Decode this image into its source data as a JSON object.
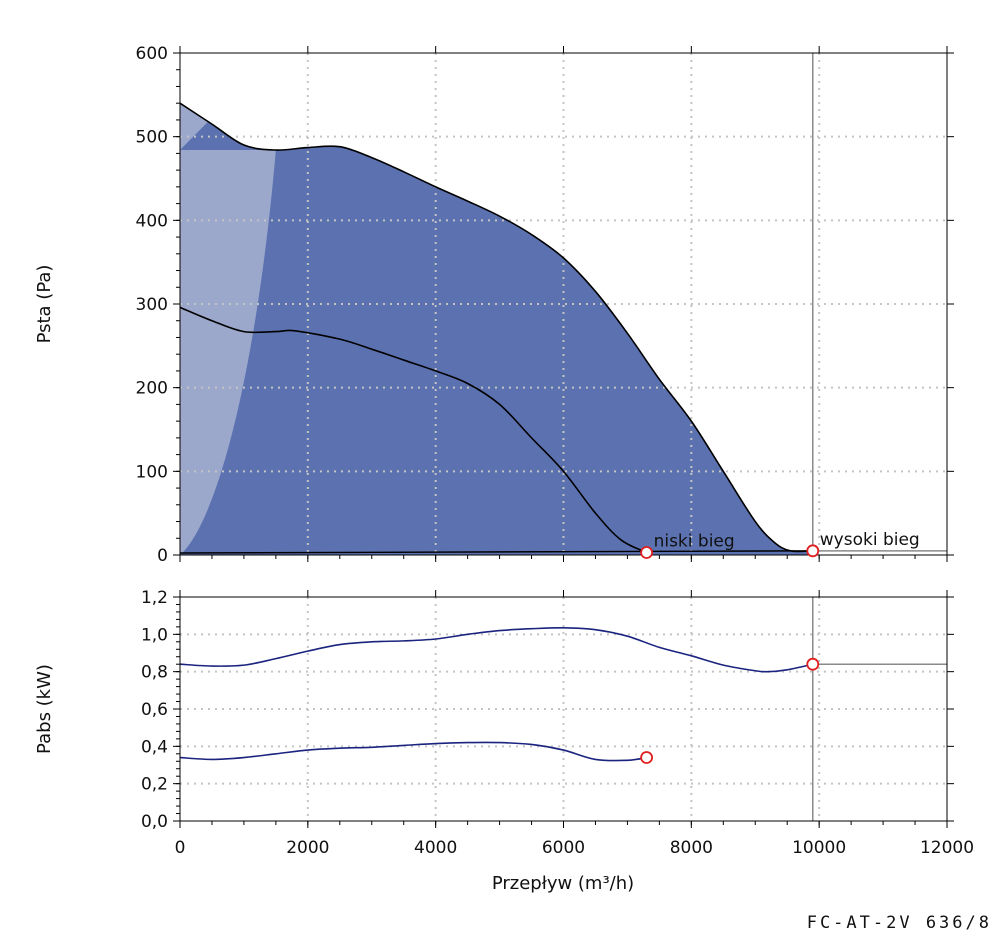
{
  "chart_data": [
    {
      "type": "line",
      "ylabel": "Psta (Pa)",
      "xlim": [
        0,
        12000
      ],
      "ylim": [
        0,
        600
      ],
      "x_ticks": [
        "0",
        "2000",
        "4000",
        "6000",
        "8000",
        "10000",
        "12000"
      ],
      "y_ticks": [
        "0",
        "100",
        "200",
        "300",
        "400",
        "500",
        "600"
      ],
      "grid": true,
      "colors": {
        "area": "#5c72b0",
        "light_area": "#9ba8cc",
        "curve": "#000000",
        "marker": "#e02020",
        "grid": "#c4c4c4"
      },
      "series": [
        {
          "name": "wysoki bieg",
          "points": [
            [
              0,
              540
            ],
            [
              500,
              515
            ],
            [
              1000,
              490
            ],
            [
              1500,
              484
            ],
            [
              2000,
              487
            ],
            [
              2500,
              488
            ],
            [
              3000,
              475
            ],
            [
              3500,
              458
            ],
            [
              4000,
              440
            ],
            [
              4500,
              423
            ],
            [
              5000,
              405
            ],
            [
              5500,
              383
            ],
            [
              6000,
              355
            ],
            [
              6500,
              315
            ],
            [
              7000,
              265
            ],
            [
              7500,
              210
            ],
            [
              8000,
              160
            ],
            [
              8500,
              100
            ],
            [
              9000,
              40
            ],
            [
              9300,
              15
            ],
            [
              9550,
              5
            ],
            [
              9900,
              5
            ]
          ]
        },
        {
          "name": "niski bieg",
          "points": [
            [
              0,
              296
            ],
            [
              500,
              280
            ],
            [
              1000,
              267
            ],
            [
              1500,
              267
            ],
            [
              1800,
              268
            ],
            [
              2500,
              258
            ],
            [
              3000,
              246
            ],
            [
              3500,
              233
            ],
            [
              4000,
              220
            ],
            [
              4500,
              205
            ],
            [
              5000,
              180
            ],
            [
              5500,
              140
            ],
            [
              6000,
              100
            ],
            [
              6500,
              50
            ],
            [
              6900,
              18
            ],
            [
              7300,
              3
            ]
          ]
        }
      ],
      "operating_points": [
        {
          "label": "niski bieg",
          "x": 7300,
          "y": 3
        },
        {
          "label": "wysoki bieg",
          "x": 9900,
          "y": 5
        }
      ],
      "reference_lines": {
        "vertical_x": 9900,
        "horizontal_y": 5
      }
    },
    {
      "type": "line",
      "xlabel": "Przepływ (m³/h)",
      "ylabel": "Pabs (kW)",
      "xlim": [
        0,
        12000
      ],
      "ylim": [
        0,
        1.2
      ],
      "x_ticks": [
        "0",
        "2000",
        "4000",
        "6000",
        "8000",
        "10000",
        "12000"
      ],
      "y_ticks": [
        "0,0",
        "0,2",
        "0,4",
        "0,6",
        "0,8",
        "1,0",
        "1,2"
      ],
      "grid": true,
      "colors": {
        "curve": "#1a237e",
        "marker": "#e02020",
        "grid": "#c4c4c4"
      },
      "series": [
        {
          "name": "wysoki bieg",
          "points": [
            [
              0,
              0.84
            ],
            [
              500,
              0.83
            ],
            [
              1000,
              0.835
            ],
            [
              1500,
              0.87
            ],
            [
              2000,
              0.91
            ],
            [
              2500,
              0.945
            ],
            [
              3000,
              0.96
            ],
            [
              3500,
              0.965
            ],
            [
              4000,
              0.975
            ],
            [
              4500,
              1.0
            ],
            [
              5000,
              1.02
            ],
            [
              5500,
              1.03
            ],
            [
              6000,
              1.035
            ],
            [
              6500,
              1.025
            ],
            [
              7000,
              0.99
            ],
            [
              7500,
              0.93
            ],
            [
              8000,
              0.885
            ],
            [
              8500,
              0.835
            ],
            [
              9000,
              0.805
            ],
            [
              9200,
              0.8
            ],
            [
              9500,
              0.81
            ],
            [
              9900,
              0.84
            ]
          ]
        },
        {
          "name": "niski bieg",
          "points": [
            [
              0,
              0.34
            ],
            [
              500,
              0.33
            ],
            [
              1000,
              0.34
            ],
            [
              1500,
              0.36
            ],
            [
              2000,
              0.38
            ],
            [
              2500,
              0.39
            ],
            [
              3000,
              0.395
            ],
            [
              3500,
              0.405
            ],
            [
              4000,
              0.415
            ],
            [
              4500,
              0.42
            ],
            [
              5000,
              0.42
            ],
            [
              5500,
              0.41
            ],
            [
              6000,
              0.38
            ],
            [
              6500,
              0.33
            ],
            [
              7000,
              0.325
            ],
            [
              7300,
              0.34
            ]
          ]
        }
      ],
      "operating_points": [
        {
          "label": "niski bieg",
          "x": 7300,
          "y": 0.34
        },
        {
          "label": "wysoki bieg",
          "x": 9900,
          "y": 0.84
        }
      ],
      "reference_lines": {
        "vertical_x": 9900,
        "horizontal_y": 0.84
      }
    }
  ],
  "model_label": "FC-AT-2V 636/8"
}
